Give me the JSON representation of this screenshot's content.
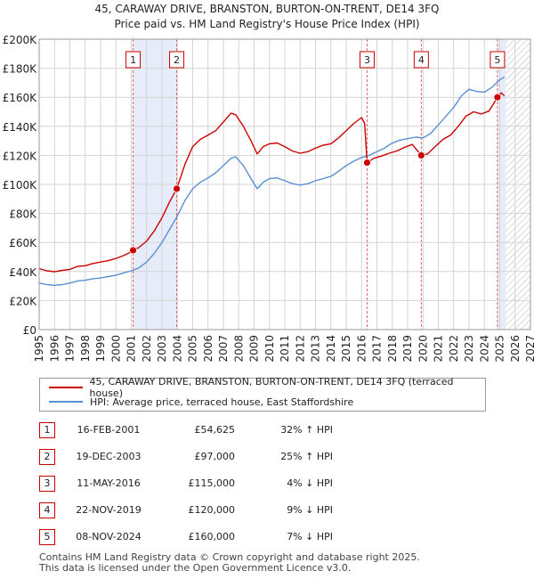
{
  "chart_data": {
    "type": "line",
    "title": "45, CARAWAY DRIVE, BRANSTON, BURTON-ON-TRENT, DE14 3FQ",
    "subtitle": "Price paid vs. HM Land Registry's House Price Index (HPI)",
    "xlabel": "",
    "ylabel": "",
    "xlim": [
      1995,
      2027
    ],
    "ylim": [
      0,
      200000
    ],
    "yticks": [
      {
        "value": 0,
        "label": "£0"
      },
      {
        "value": 20000,
        "label": "£20K"
      },
      {
        "value": 40000,
        "label": "£40K"
      },
      {
        "value": 60000,
        "label": "£60K"
      },
      {
        "value": 80000,
        "label": "£80K"
      },
      {
        "value": 100000,
        "label": "£100K"
      },
      {
        "value": 120000,
        "label": "£120K"
      },
      {
        "value": 140000,
        "label": "£140K"
      },
      {
        "value": 160000,
        "label": "£160K"
      },
      {
        "value": 180000,
        "label": "£180K"
      },
      {
        "value": 200000,
        "label": "£200K"
      }
    ],
    "xticks": [
      "1995",
      "1996",
      "1997",
      "1998",
      "1999",
      "2000",
      "2001",
      "2002",
      "2003",
      "2004",
      "2005",
      "2006",
      "2007",
      "2008",
      "2009",
      "2010",
      "2011",
      "2012",
      "2013",
      "2014",
      "2015",
      "2016",
      "2017",
      "2018",
      "2019",
      "2020",
      "2021",
      "2022",
      "2023",
      "2024",
      "2025",
      "2026",
      "2027"
    ],
    "grid": true,
    "shaded_ranges": [
      [
        2001.12,
        2003.96
      ],
      [
        2024.85,
        2025.4
      ]
    ],
    "hatched_from": 2025.4,
    "series": [
      {
        "name": "45, CARAWAY DRIVE, BRANSTON, BURTON-ON-TRENT, DE14 3FQ (terraced house)",
        "color": "#cc0000",
        "points": [
          [
            1995.0,
            42000
          ],
          [
            1995.5,
            40500
          ],
          [
            1996.0,
            39800
          ],
          [
            1996.5,
            40800
          ],
          [
            1997.0,
            41500
          ],
          [
            1997.5,
            43500
          ],
          [
            1998.0,
            44000
          ],
          [
            1998.5,
            45500
          ],
          [
            1999.0,
            46500
          ],
          [
            1999.5,
            47500
          ],
          [
            2000.0,
            49000
          ],
          [
            2000.5,
            51000
          ],
          [
            2001.0,
            53500
          ],
          [
            2001.12,
            54625
          ],
          [
            2001.5,
            56500
          ],
          [
            2002.0,
            61000
          ],
          [
            2002.5,
            68000
          ],
          [
            2003.0,
            77000
          ],
          [
            2003.5,
            88000
          ],
          [
            2003.96,
            97000
          ],
          [
            2004.5,
            114000
          ],
          [
            2005.0,
            126000
          ],
          [
            2005.5,
            131000
          ],
          [
            2006.0,
            134000
          ],
          [
            2006.5,
            137000
          ],
          [
            2007.0,
            143000
          ],
          [
            2007.5,
            149000
          ],
          [
            2007.8,
            148000
          ],
          [
            2008.3,
            140000
          ],
          [
            2008.8,
            130000
          ],
          [
            2009.2,
            121000
          ],
          [
            2009.6,
            126000
          ],
          [
            2010.0,
            128000
          ],
          [
            2010.5,
            128500
          ],
          [
            2011.0,
            126000
          ],
          [
            2011.5,
            123000
          ],
          [
            2012.0,
            121500
          ],
          [
            2012.5,
            122500
          ],
          [
            2013.0,
            125000
          ],
          [
            2013.5,
            127000
          ],
          [
            2014.0,
            128000
          ],
          [
            2014.5,
            132000
          ],
          [
            2015.0,
            137000
          ],
          [
            2015.5,
            142000
          ],
          [
            2016.0,
            146000
          ],
          [
            2016.2,
            142000
          ],
          [
            2016.36,
            115000
          ],
          [
            2016.8,
            118000
          ],
          [
            2017.3,
            119500
          ],
          [
            2017.8,
            121500
          ],
          [
            2018.3,
            123000
          ],
          [
            2018.8,
            125500
          ],
          [
            2019.3,
            127500
          ],
          [
            2019.89,
            120000
          ],
          [
            2020.3,
            121000
          ],
          [
            2020.8,
            126000
          ],
          [
            2021.3,
            131000
          ],
          [
            2021.8,
            134000
          ],
          [
            2022.3,
            140000
          ],
          [
            2022.8,
            147000
          ],
          [
            2023.3,
            150000
          ],
          [
            2023.8,
            148500
          ],
          [
            2024.3,
            150500
          ],
          [
            2024.85,
            160000
          ],
          [
            2025.1,
            163000
          ],
          [
            2025.3,
            161000
          ]
        ]
      },
      {
        "name": "HPI: Average price, terraced house, East Staffordshire",
        "color": "#5b8fd4",
        "points": [
          [
            1995.0,
            32000
          ],
          [
            1995.5,
            31000
          ],
          [
            1996.0,
            30500
          ],
          [
            1996.5,
            31000
          ],
          [
            1997.0,
            32000
          ],
          [
            1997.5,
            33500
          ],
          [
            1998.0,
            34000
          ],
          [
            1998.5,
            35000
          ],
          [
            1999.0,
            35500
          ],
          [
            1999.5,
            36500
          ],
          [
            2000.0,
            37500
          ],
          [
            2000.5,
            39000
          ],
          [
            2001.0,
            40500
          ],
          [
            2001.5,
            42500
          ],
          [
            2002.0,
            46500
          ],
          [
            2002.5,
            52500
          ],
          [
            2003.0,
            60000
          ],
          [
            2003.5,
            69000
          ],
          [
            2003.96,
            77500
          ],
          [
            2004.5,
            89000
          ],
          [
            2005.0,
            97000
          ],
          [
            2005.5,
            101500
          ],
          [
            2006.0,
            104500
          ],
          [
            2006.5,
            108000
          ],
          [
            2007.0,
            113000
          ],
          [
            2007.5,
            118000
          ],
          [
            2007.8,
            119000
          ],
          [
            2008.3,
            113000
          ],
          [
            2008.8,
            104000
          ],
          [
            2009.2,
            97000
          ],
          [
            2009.6,
            101500
          ],
          [
            2010.0,
            104000
          ],
          [
            2010.5,
            104500
          ],
          [
            2011.0,
            102500
          ],
          [
            2011.5,
            100500
          ],
          [
            2012.0,
            99500
          ],
          [
            2012.5,
            100500
          ],
          [
            2013.0,
            102500
          ],
          [
            2013.5,
            104000
          ],
          [
            2014.0,
            105500
          ],
          [
            2014.5,
            109000
          ],
          [
            2015.0,
            113000
          ],
          [
            2015.5,
            116000
          ],
          [
            2016.0,
            118500
          ],
          [
            2016.5,
            120000
          ],
          [
            2017.0,
            122500
          ],
          [
            2017.5,
            125000
          ],
          [
            2017.9,
            128000
          ],
          [
            2018.5,
            130500
          ],
          [
            2019.0,
            131500
          ],
          [
            2019.5,
            132500
          ],
          [
            2020.0,
            132000
          ],
          [
            2020.5,
            135000
          ],
          [
            2021.0,
            141000
          ],
          [
            2021.5,
            147000
          ],
          [
            2022.0,
            153000
          ],
          [
            2022.5,
            161000
          ],
          [
            2023.0,
            165500
          ],
          [
            2023.5,
            164000
          ],
          [
            2024.0,
            163500
          ],
          [
            2024.5,
            167000
          ],
          [
            2025.0,
            172000
          ],
          [
            2025.3,
            174000
          ]
        ]
      }
    ],
    "markers": [
      {
        "label": "1",
        "x": 2001.12,
        "y": 54625
      },
      {
        "label": "2",
        "x": 2003.96,
        "y": 97000
      },
      {
        "label": "3",
        "x": 2016.36,
        "y": 115000
      },
      {
        "label": "4",
        "x": 2019.89,
        "y": 120000
      },
      {
        "label": "5",
        "x": 2024.85,
        "y": 160000
      }
    ]
  },
  "legend": {
    "red_label": "45, CARAWAY DRIVE, BRANSTON, BURTON-ON-TRENT, DE14 3FQ (terraced house)",
    "blue_label": "HPI: Average price, terraced house, East Staffordshire"
  },
  "transactions": [
    {
      "num": "1",
      "date": "16-FEB-2001",
      "price": "£54,625",
      "hpi": "32% ↑ HPI"
    },
    {
      "num": "2",
      "date": "19-DEC-2003",
      "price": "£97,000",
      "hpi": "25% ↑ HPI"
    },
    {
      "num": "3",
      "date": "11-MAY-2016",
      "price": "£115,000",
      "hpi": "4% ↓ HPI"
    },
    {
      "num": "4",
      "date": "22-NOV-2019",
      "price": "£120,000",
      "hpi": "9% ↓ HPI"
    },
    {
      "num": "5",
      "date": "08-NOV-2024",
      "price": "£160,000",
      "hpi": "7% ↓ HPI"
    }
  ],
  "footer": {
    "line1": "Contains HM Land Registry data © Crown copyright and database right 2025.",
    "line2": "This data is licensed under the Open Government Licence v3.0."
  }
}
